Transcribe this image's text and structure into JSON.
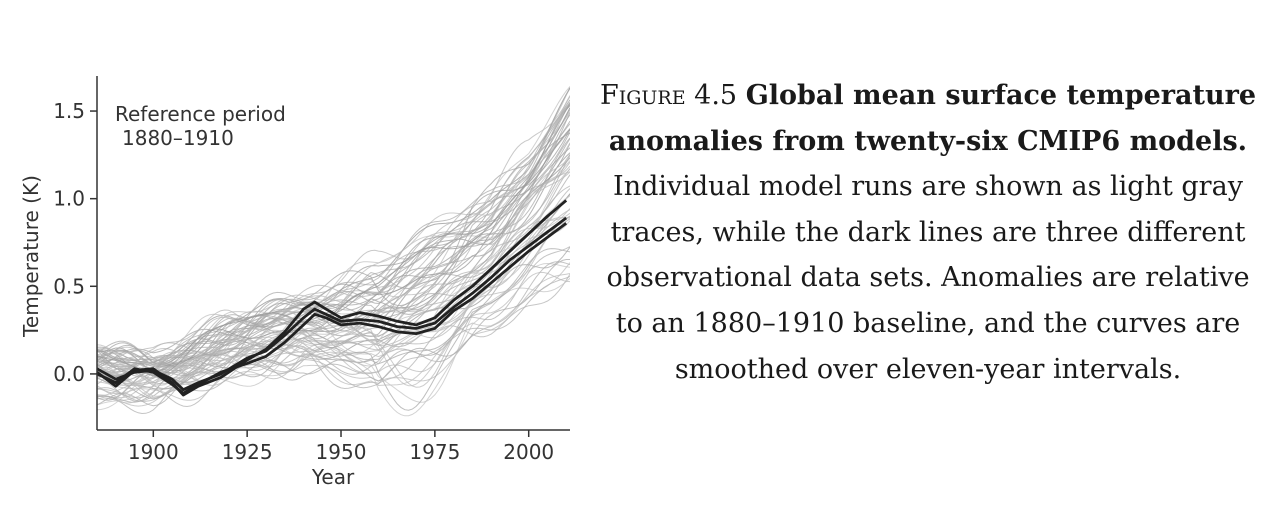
{
  "caption": {
    "figure_label": "Figure 4.5",
    "title": "Global mean surface temperature anomalies from twenty-six CMIP6 models.",
    "body": "Individual model runs are shown as light gray traces, while the dark lines are three different observational data sets. Anomalies are relative to an 1880–1910 baseline, and the curves are smoothed over eleven-year intervals."
  },
  "chart_data": {
    "type": "line",
    "title": "",
    "xlabel": "Year",
    "ylabel": "Temperature (K)",
    "xlim": [
      1885,
      2011
    ],
    "ylim": [
      -0.32,
      1.7
    ],
    "xticks": [
      1900,
      1925,
      1950,
      1975,
      2000
    ],
    "yticks": [
      0.0,
      0.5,
      1.0,
      1.5
    ],
    "xtick_labels": [
      "1900",
      "1925",
      "1950",
      "1975",
      "2000"
    ],
    "ytick_labels": [
      "0.0",
      "0.5",
      "1.0",
      "1.5"
    ],
    "grid": false,
    "annotation": {
      "line1": "Reference period",
      "line2": "1880–1910"
    },
    "colors": {
      "model_runs": "#9a9a9a",
      "observations": "#222222",
      "axis": "#333333"
    },
    "model_runs": {
      "description_count": 26,
      "x": [
        1885,
        1900,
        1920,
        1940,
        1960,
        1975,
        1990,
        2000,
        2011
      ],
      "ensemble_low": [
        -0.15,
        -0.12,
        -0.02,
        0.08,
        -0.05,
        0.12,
        0.28,
        0.42,
        0.55
      ],
      "ensemble_mid": [
        0.02,
        0.02,
        0.13,
        0.25,
        0.28,
        0.45,
        0.7,
        0.95,
        1.2
      ],
      "ensemble_high": [
        0.12,
        0.1,
        0.3,
        0.45,
        0.62,
        0.85,
        1.05,
        1.25,
        1.62
      ]
    },
    "series": [
      {
        "x": [
          1885,
          1890,
          1895,
          1900,
          1905,
          1908,
          1912,
          1918,
          1925,
          1930,
          1935,
          1940,
          1943,
          1946,
          1950,
          1955,
          1960,
          1965,
          1970,
          1975,
          1980,
          1985,
          1990,
          1995,
          2000,
          2005,
          2010
        ],
        "values": [
          0.01,
          -0.07,
          0.02,
          0.03,
          -0.05,
          -0.12,
          -0.07,
          -0.02,
          0.08,
          0.14,
          0.24,
          0.37,
          0.41,
          0.37,
          0.32,
          0.35,
          0.33,
          0.3,
          0.28,
          0.32,
          0.42,
          0.5,
          0.6,
          0.7,
          0.8,
          0.9,
          0.99
        ]
      },
      {
        "x": [
          1885,
          1890,
          1895,
          1900,
          1905,
          1908,
          1912,
          1918,
          1925,
          1930,
          1935,
          1940,
          1943,
          1946,
          1950,
          1955,
          1960,
          1965,
          1970,
          1975,
          1980,
          1985,
          1990,
          1995,
          2000,
          2005,
          2010
        ],
        "values": [
          0.03,
          -0.03,
          0.01,
          0.02,
          -0.03,
          -0.09,
          -0.05,
          0.0,
          0.09,
          0.13,
          0.22,
          0.32,
          0.37,
          0.34,
          0.3,
          0.31,
          0.3,
          0.27,
          0.26,
          0.29,
          0.38,
          0.46,
          0.55,
          0.65,
          0.73,
          0.81,
          0.89
        ]
      },
      {
        "x": [
          1885,
          1890,
          1895,
          1900,
          1905,
          1908,
          1912,
          1918,
          1925,
          1930,
          1935,
          1940,
          1943,
          1946,
          1950,
          1955,
          1960,
          1965,
          1970,
          1975,
          1980,
          1985,
          1990,
          1995,
          2000,
          2005,
          2010
        ],
        "values": [
          0.0,
          -0.05,
          0.03,
          0.01,
          -0.06,
          -0.11,
          -0.06,
          0.01,
          0.06,
          0.1,
          0.18,
          0.28,
          0.34,
          0.32,
          0.28,
          0.29,
          0.27,
          0.24,
          0.23,
          0.26,
          0.36,
          0.43,
          0.52,
          0.61,
          0.7,
          0.78,
          0.86
        ]
      }
    ]
  }
}
